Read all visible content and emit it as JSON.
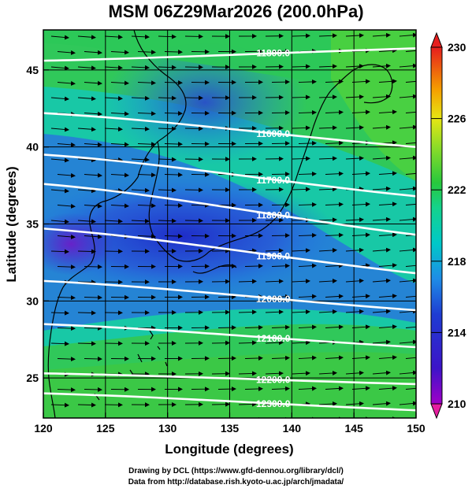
{
  "title": "MSM 06Z29Mar2026 (200.0hPa)",
  "x_axis": {
    "label": "Longitude (degrees)",
    "ticks": [
      "120",
      "125",
      "130",
      "135",
      "140",
      "145",
      "150"
    ],
    "range": [
      120,
      150
    ]
  },
  "y_axis": {
    "label": "Latitude  (degrees)",
    "ticks": [
      "25",
      "30",
      "35",
      "40",
      "45"
    ],
    "range": [
      22.4,
      47.6
    ]
  },
  "colorbar": {
    "min": 210,
    "max": 230,
    "tick_labels": [
      "230",
      "226",
      "222",
      "218",
      "214",
      "210"
    ]
  },
  "contours": {
    "color": "#ffffff",
    "levels": [
      {
        "label": "11800.0",
        "lat_at_120": 45.6,
        "lat_at_150": 46.4
      },
      {
        "label": "11600.0",
        "lat_at_120": 42.2,
        "lat_at_150": 40.0
      },
      {
        "label": "11700.0",
        "lat_at_120": 39.5,
        "lat_at_150": 36.8
      },
      {
        "label": "11800.0",
        "lat_at_120": 37.6,
        "lat_at_150": 34.3
      },
      {
        "label": "11900.0",
        "lat_at_120": 34.7,
        "lat_at_150": 31.8
      },
      {
        "label": "12000.0",
        "lat_at_120": 31.3,
        "lat_at_150": 29.4
      },
      {
        "label": "12100.0",
        "lat_at_120": 28.5,
        "lat_at_150": 27.0
      },
      {
        "label": "12200.0",
        "lat_at_120": 25.3,
        "lat_at_150": 24.6
      },
      {
        "label": "12300.0",
        "lat_at_120": 24.0,
        "lat_at_150": 22.9
      }
    ]
  },
  "footer": {
    "line1": "Drawing by DCL (https://www.gfd-dennou.org/library/dcl/)",
    "line2": "Data from http://database.rish.kyoto-u.ac.jp/arch/jmadata/"
  }
}
